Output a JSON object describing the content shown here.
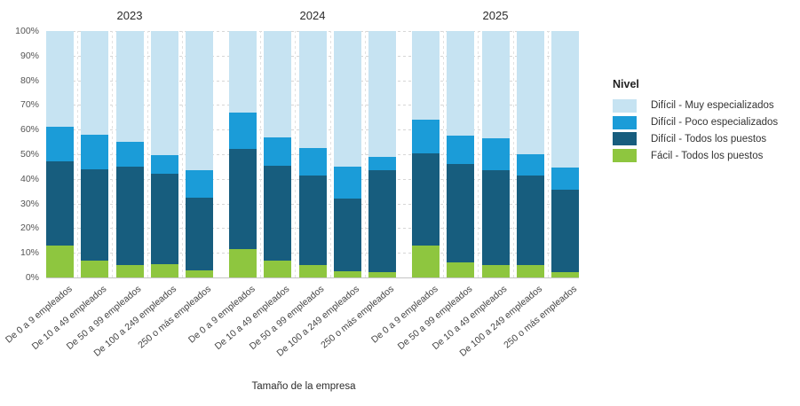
{
  "chart_data": {
    "type": "bar",
    "stacked": true,
    "percent_stacked": true,
    "xlabel": "Tamaño de la empresa",
    "legend_title": "Nivel",
    "legend_position": "right",
    "grid": "horizontal-dashed",
    "ylim": [
      0,
      100
    ],
    "y_ticks": [
      "0%",
      "10%",
      "20%",
      "30%",
      "40%",
      "50%",
      "60%",
      "70%",
      "80%",
      "90%",
      "100%"
    ],
    "series": [
      {
        "name": "Difícil - Muy especializados",
        "color": "#c6e3f2"
      },
      {
        "name": "Difícil - Poco especializados",
        "color": "#1b9cd8"
      },
      {
        "name": "Difícil - Todos los puestos",
        "color": "#175d7e"
      },
      {
        "name": "Fácil - Todos los puestos",
        "color": "#8ec63f"
      }
    ],
    "stack_order_bottom_to_top": [
      "Fácil - Todos los puestos",
      "Difícil - Todos los puestos",
      "Difícil - Poco especializados",
      "Difícil - Muy especializados"
    ],
    "groups": [
      {
        "title": "2023",
        "bars": [
          {
            "label": "De 0 a 9 empleados",
            "facil_todos": 13,
            "dificil_todos": 34,
            "dificil_poco": 14,
            "dificil_muy": 39
          },
          {
            "label": "De 10 a 49 empleados",
            "facil_todos": 7,
            "dificil_todos": 37,
            "dificil_poco": 14,
            "dificil_muy": 42
          },
          {
            "label": "De 50 a 99 empleados",
            "facil_todos": 5,
            "dificil_todos": 40,
            "dificil_poco": 10,
            "dificil_muy": 45
          },
          {
            "label": "De 100 a 249 empleados",
            "facil_todos": 5.5,
            "dificil_todos": 36.5,
            "dificil_poco": 7.5,
            "dificil_muy": 50.5
          },
          {
            "label": "250 o más empleados",
            "facil_todos": 3,
            "dificil_todos": 29.5,
            "dificil_poco": 11,
            "dificil_muy": 56.5
          }
        ]
      },
      {
        "title": "2024",
        "bars": [
          {
            "label": "De 0 a 9 empleados",
            "facil_todos": 11.5,
            "dificil_todos": 40.5,
            "dificil_poco": 15,
            "dificil_muy": 33
          },
          {
            "label": "De 10 a 49 empleados",
            "facil_todos": 7,
            "dificil_todos": 38.5,
            "dificil_poco": 11.5,
            "dificil_muy": 43
          },
          {
            "label": "De 50 a 99 empleados",
            "facil_todos": 5,
            "dificil_todos": 36.5,
            "dificil_poco": 11,
            "dificil_muy": 47.5
          },
          {
            "label": "De 100 a 249 empleados",
            "facil_todos": 2.5,
            "dificil_todos": 29.5,
            "dificil_poco": 13,
            "dificil_muy": 55
          },
          {
            "label": "250 o más empleados",
            "facil_todos": 2,
            "dificil_todos": 41.5,
            "dificil_poco": 5.5,
            "dificil_muy": 51
          }
        ]
      },
      {
        "title": "2025",
        "bars": [
          {
            "label": "De 0 a 9 empleados",
            "facil_todos": 13,
            "dificil_todos": 37.5,
            "dificil_poco": 13.5,
            "dificil_muy": 36
          },
          {
            "label": "De 50 a 99 empleados",
            "facil_todos": 6,
            "dificil_todos": 40,
            "dificil_poco": 11.5,
            "dificil_muy": 42.5
          },
          {
            "label": "De 10 a 49 empleados",
            "facil_todos": 5,
            "dificil_todos": 38.5,
            "dificil_poco": 13,
            "dificil_muy": 43.5
          },
          {
            "label": "De 100 a 249 empleados",
            "facil_todos": 5,
            "dificil_todos": 36.5,
            "dificil_poco": 8.5,
            "dificil_muy": 50
          },
          {
            "label": "250 o más empleados",
            "facil_todos": 2,
            "dificil_todos": 33.5,
            "dificil_poco": 9,
            "dificil_muy": 55.5
          }
        ]
      }
    ]
  }
}
